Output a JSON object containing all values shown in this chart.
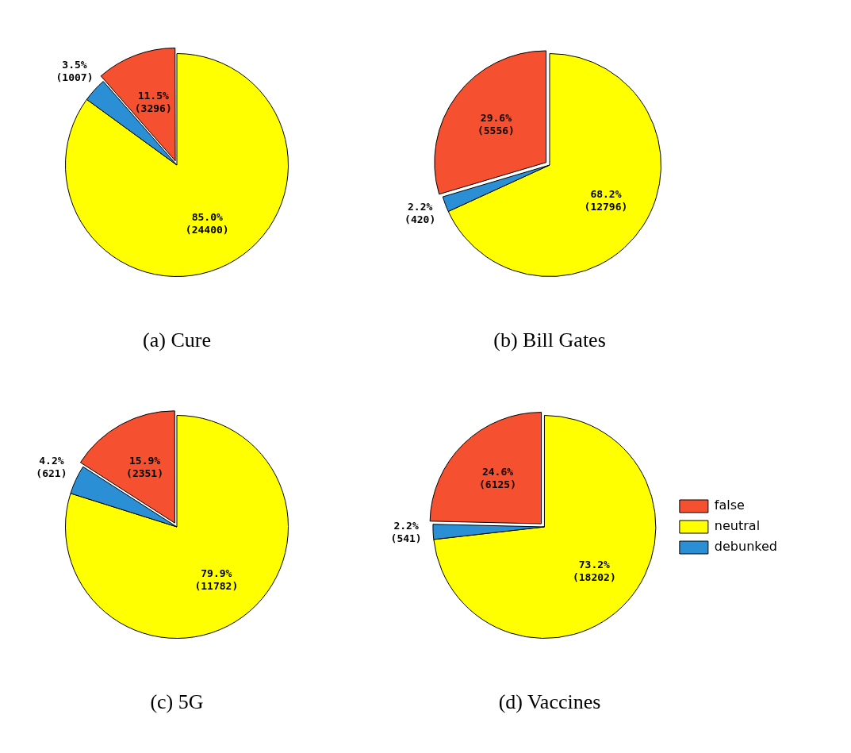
{
  "chart_data": [
    {
      "type": "pie",
      "title": "(a) Cure",
      "categories": [
        null,
        null,
        null
      ],
      "values": [
        3296,
        24400,
        1007
      ],
      "colors": [
        "#f5502f",
        "#ffff00",
        "#2b8fd6"
      ],
      "value_labels": [
        "11.5%\n(3296)",
        "85.0%\n(24400)",
        "3.5%\n(1007)"
      ]
    },
    {
      "type": "pie",
      "title": "(b) Bill Gates",
      "categories": [
        null,
        null,
        null
      ],
      "values": [
        5556,
        12796,
        420
      ],
      "colors": [
        "#f5502f",
        "#ffff00",
        "#2b8fd6"
      ],
      "value_labels": [
        "29.6%\n(5556)",
        "68.2%\n(12796)",
        "2.2%\n(420)"
      ]
    },
    {
      "type": "pie",
      "title": "(c) 5G",
      "categories": [
        null,
        null,
        null
      ],
      "values": [
        2351,
        11782,
        621
      ],
      "colors": [
        "#f5502f",
        "#ffff00",
        "#2b8fd6"
      ],
      "value_labels": [
        "15.9%\n(2351)",
        "79.9%\n(11782)",
        "4.2%\n(621)"
      ]
    },
    {
      "type": "pie",
      "title": "(d) Vaccines",
      "categories": [
        "false",
        "neutral",
        "debunked"
      ],
      "values": [
        6125,
        18202,
        541
      ],
      "colors": [
        "#f5502f",
        "#ffff00",
        "#2b8fd6"
      ],
      "value_labels": [
        "24.6%\n(6125)",
        "73.2%\n(18202)",
        "2.2%\n(541)"
      ],
      "legend": "right"
    }
  ]
}
